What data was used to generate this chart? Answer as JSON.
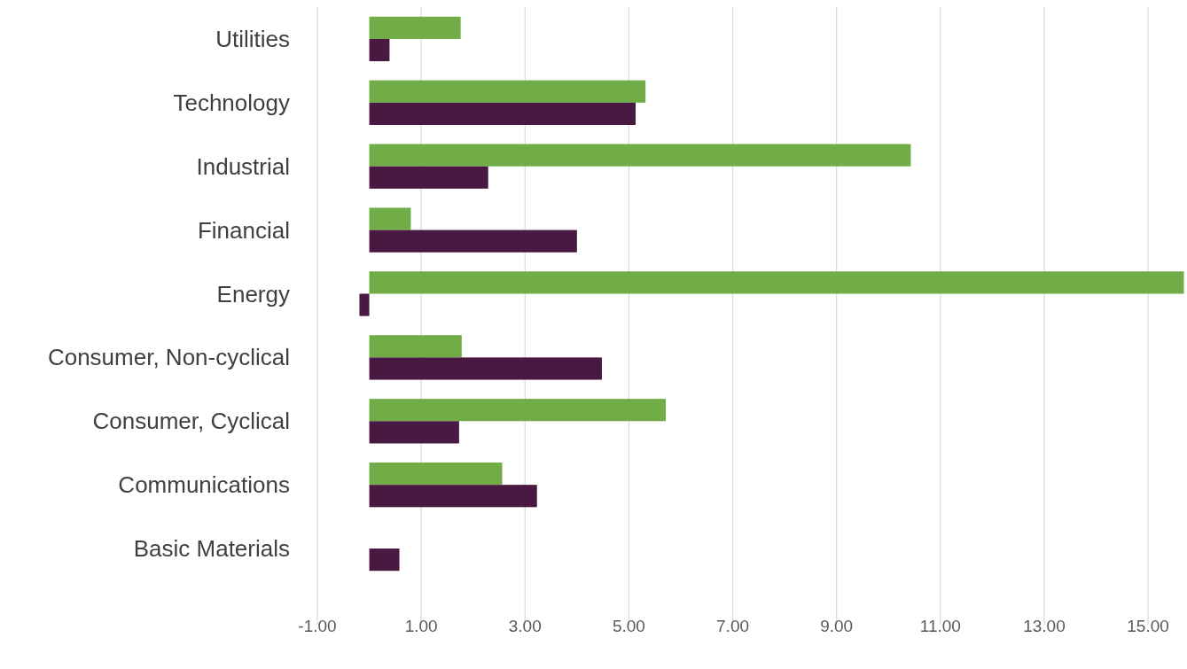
{
  "chart_data": {
    "type": "bar",
    "orientation": "horizontal",
    "categories": [
      "Utilities",
      "Technology",
      "Industrial",
      "Financial",
      "Energy",
      "Consumer, Non-cyclical",
      "Consumer, Cyclical",
      "Communications",
      "Basic Materials"
    ],
    "series": [
      {
        "color": "#70ad47",
        "values": [
          1.76,
          5.32,
          10.43,
          0.8,
          15.69,
          1.78,
          5.71,
          2.56,
          null
        ]
      },
      {
        "color": "#4a1942",
        "values": [
          0.39,
          5.13,
          2.29,
          4.0,
          -0.19,
          4.48,
          1.73,
          3.23,
          0.58
        ]
      }
    ],
    "xlim": [
      -1,
      15.75
    ],
    "xticks": [
      {
        "value": -1,
        "label": "-1.00"
      },
      {
        "value": 1,
        "label": "1.00"
      },
      {
        "value": 3,
        "label": "3.00"
      },
      {
        "value": 5,
        "label": "5.00"
      },
      {
        "value": 7,
        "label": "7.00"
      },
      {
        "value": 9,
        "label": "9.00"
      },
      {
        "value": 11,
        "label": "11.00"
      },
      {
        "value": 13,
        "label": "13.00"
      },
      {
        "value": 15,
        "label": "15.00"
      }
    ],
    "grid": "x"
  }
}
